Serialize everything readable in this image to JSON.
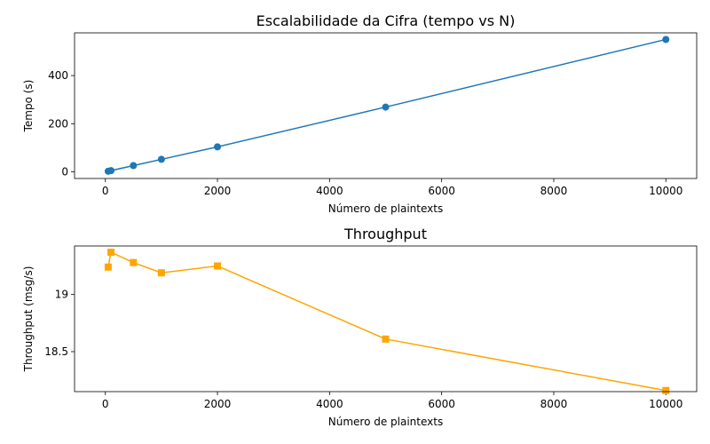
{
  "chart_data": [
    {
      "type": "line",
      "title": "Escalabilidade da Cifra (tempo vs N)",
      "xlabel": "Número de plaintexts",
      "ylabel": "Tempo (s)",
      "xlim": [
        -550,
        10550
      ],
      "ylim": [
        -27.5,
        577.5
      ],
      "xticks": [
        0,
        2000,
        4000,
        6000,
        8000,
        10000
      ],
      "yticks": [
        0,
        200,
        400
      ],
      "color": "#1f77b4",
      "marker": "circle",
      "grid": false,
      "series": [
        {
          "x": [
            50,
            100,
            500,
            1000,
            2000,
            5000,
            10000
          ],
          "y": [
            2.6,
            5.2,
            26.0,
            52.1,
            103.9,
            269.2,
            550.0
          ]
        }
      ]
    },
    {
      "type": "line",
      "title": "Throughput",
      "xlabel": "Número de plaintexts",
      "ylabel": "Throughput (msg/s)",
      "xlim": [
        -550,
        10550
      ],
      "ylim": [
        18.15,
        19.425
      ],
      "xticks": [
        0,
        2000,
        4000,
        6000,
        8000,
        10000
      ],
      "yticks": [
        18.5,
        19.0
      ],
      "color": "#ffa500",
      "marker": "square",
      "grid": false,
      "series": [
        {
          "x": [
            50,
            100,
            500,
            1000,
            2000,
            5000,
            10000
          ],
          "y": [
            19.24,
            19.37,
            19.28,
            19.19,
            19.25,
            18.61,
            18.16
          ]
        }
      ]
    }
  ]
}
